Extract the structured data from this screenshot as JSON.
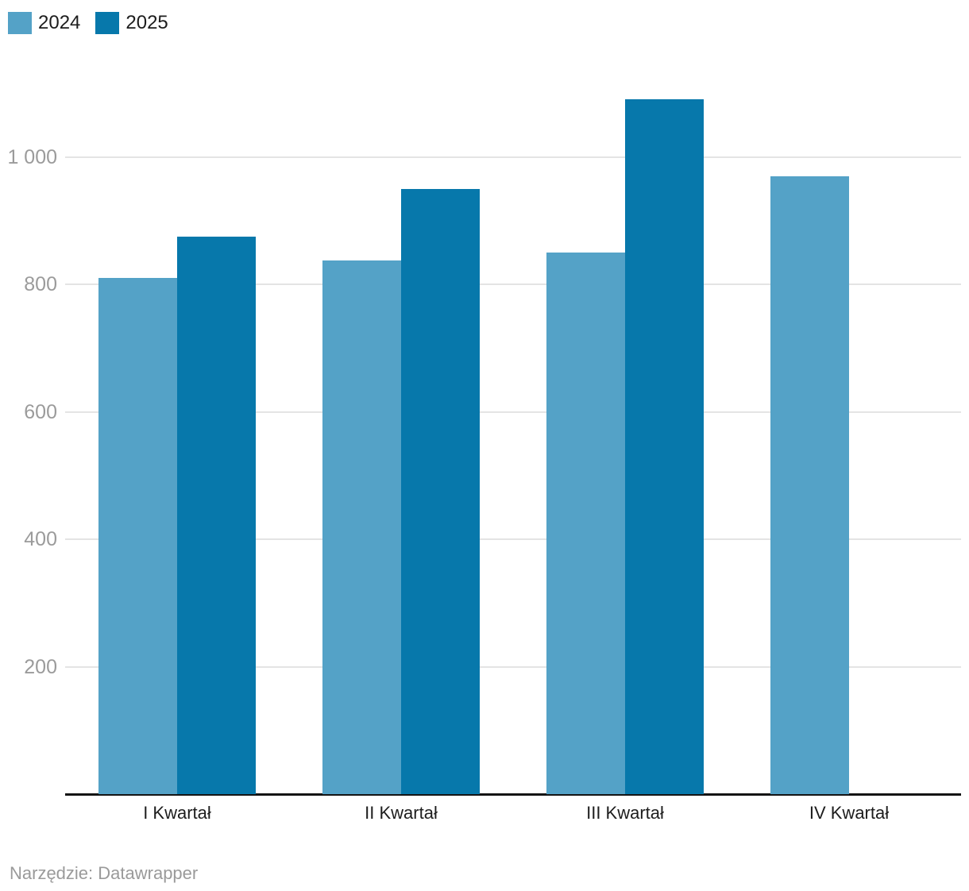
{
  "legend": {
    "items": [
      {
        "label": "2024"
      },
      {
        "label": "2025"
      }
    ]
  },
  "footer": {
    "text": "Narzędzie: Datawrapper"
  },
  "colors": {
    "series_2024": "#54A2C7",
    "series_2025": "#0778AB",
    "gridline": "#e4e4e4",
    "axis_line": "#141414",
    "tick_label": "#9b9b9b",
    "category_label": "#1d1d1d",
    "footer_text": "#9a9a9a",
    "background": "#ffffff"
  },
  "chart_data": {
    "type": "bar",
    "categories": [
      "I Kwartał",
      "II Kwartał",
      "III Kwartał",
      "IV Kwartał"
    ],
    "series": [
      {
        "name": "2024",
        "color": "#54A2C7",
        "values": [
          810,
          838,
          850,
          970
        ]
      },
      {
        "name": "2025",
        "color": "#0778AB",
        "values": [
          875,
          950,
          1090,
          null
        ]
      }
    ],
    "yticks": [
      {
        "value": 200,
        "label": "200"
      },
      {
        "value": 400,
        "label": "400"
      },
      {
        "value": 600,
        "label": "600"
      },
      {
        "value": 800,
        "label": "800"
      },
      {
        "value": 1000,
        "label": "1 000"
      }
    ],
    "ylim": [
      0,
      1135
    ],
    "xlabel": "",
    "ylabel": "",
    "grid": "horizontal",
    "legend_position": "top-left",
    "attribution": "Narzędzie: Datawrapper"
  }
}
